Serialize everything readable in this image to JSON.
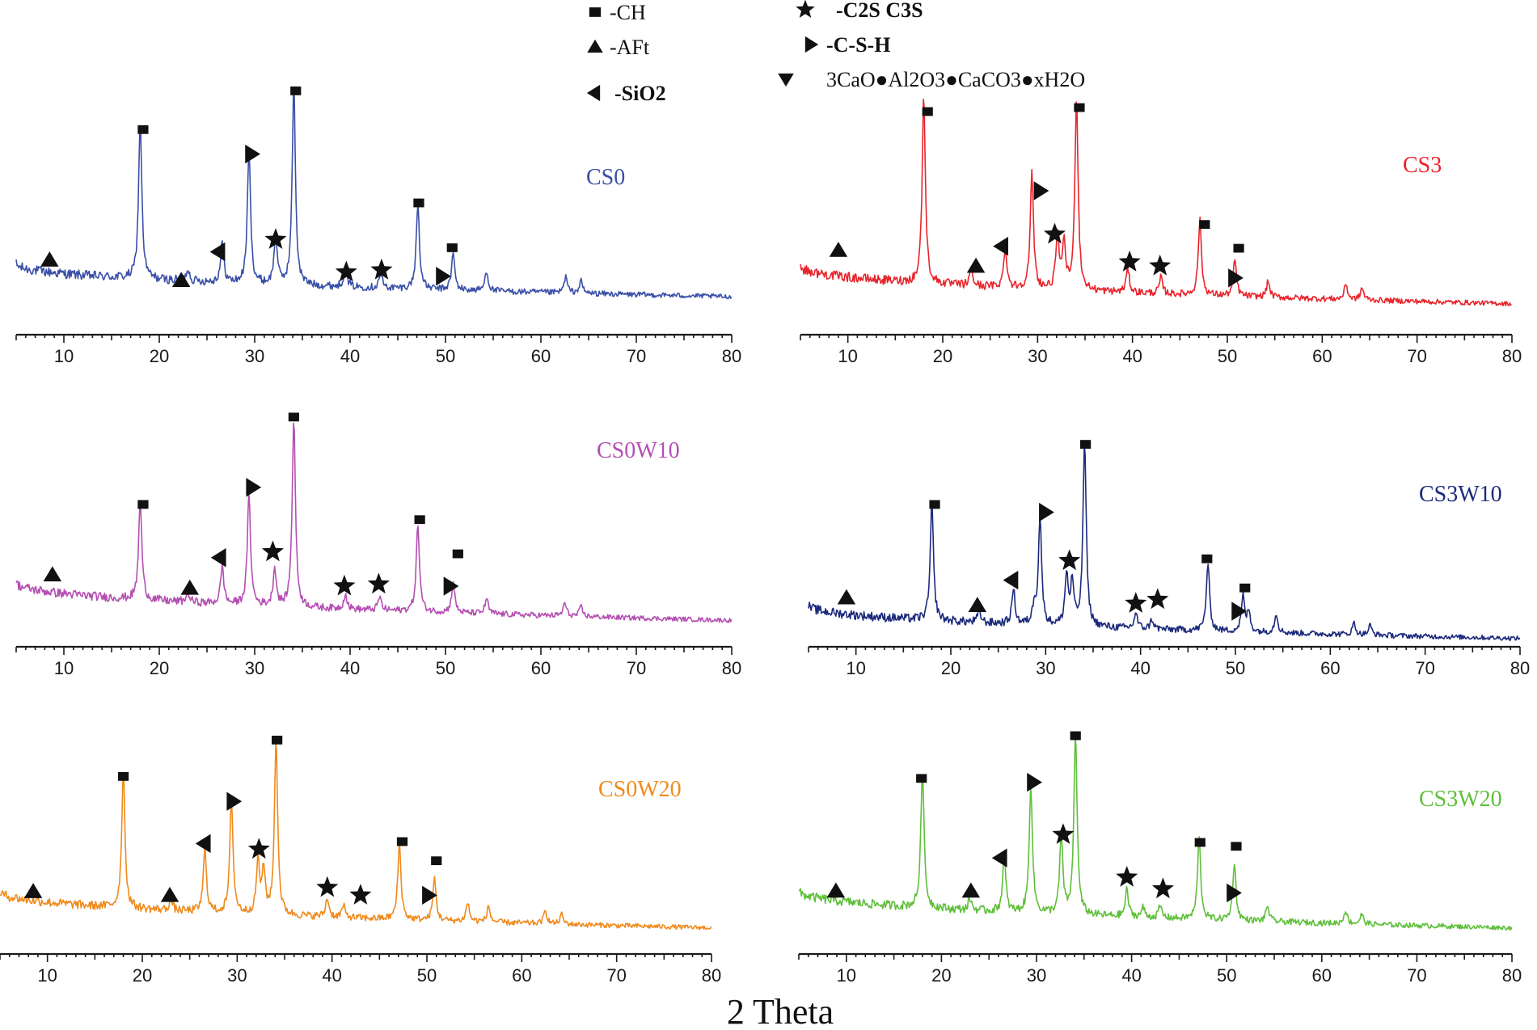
{
  "figure": {
    "x_axis_title": "2 Theta"
  },
  "legend": [
    {
      "symbol": "square",
      "label": "-CH",
      "bold": false
    },
    {
      "symbol": "triangle-up",
      "label": "-AFt",
      "bold": false
    },
    {
      "symbol": "triangle-left",
      "label": "-SiO2",
      "bold": true
    },
    {
      "symbol": "star",
      "label": "-C2S C3S",
      "bold": true
    },
    {
      "symbol": "triangle-right",
      "label": "-C-S-H",
      "bold": true
    },
    {
      "symbol": "triangle-down",
      "label": "3CaO●Al2O3●CaCO3●xH2O",
      "bold": false
    }
  ],
  "chart_data": [
    {
      "type": "line",
      "name": "CS0",
      "color": "#3a4fa8",
      "xlabel": "2 Theta",
      "xlim": [
        5,
        80
      ],
      "xticks": [
        10,
        20,
        30,
        40,
        50,
        60,
        70,
        80
      ],
      "baseline_start": 0.2,
      "baseline_end": 0.04,
      "peaks": [
        [
          18.0,
          0.78
        ],
        [
          23.0,
          0.06
        ],
        [
          26.6,
          0.2
        ],
        [
          29.4,
          0.65
        ],
        [
          32.2,
          0.24
        ],
        [
          34.1,
          0.98
        ],
        [
          39.5,
          0.1
        ],
        [
          43.2,
          0.07
        ],
        [
          47.1,
          0.42
        ],
        [
          50.8,
          0.18
        ],
        [
          54.3,
          0.1
        ],
        [
          62.6,
          0.08
        ],
        [
          64.2,
          0.06
        ]
      ],
      "annotations": [
        {
          "symbol": "triangle-up",
          "x": 8.5,
          "y": 0.22
        },
        {
          "symbol": "square",
          "x": 18.3,
          "y": 0.86
        },
        {
          "symbol": "triangle-up",
          "x": 22.3,
          "y": 0.12
        },
        {
          "symbol": "triangle-left",
          "x": 26.2,
          "y": 0.26
        },
        {
          "symbol": "triangle-right",
          "x": 29.7,
          "y": 0.74
        },
        {
          "symbol": "star",
          "x": 32.2,
          "y": 0.32
        },
        {
          "symbol": "square",
          "x": 34.3,
          "y": 1.05
        },
        {
          "symbol": "star",
          "x": 39.6,
          "y": 0.16
        },
        {
          "symbol": "star",
          "x": 43.3,
          "y": 0.17
        },
        {
          "symbol": "square",
          "x": 47.2,
          "y": 0.5
        },
        {
          "symbol": "triangle-right",
          "x": 49.7,
          "y": 0.14
        },
        {
          "symbol": "square",
          "x": 50.7,
          "y": 0.28
        }
      ]
    },
    {
      "type": "line",
      "name": "CS3",
      "color": "#e8242c",
      "xlabel": "2 Theta",
      "xlim": [
        5,
        80
      ],
      "xticks": [
        10,
        20,
        30,
        40,
        50,
        60,
        70,
        80
      ],
      "baseline_start": 0.22,
      "baseline_end": 0.03,
      "peaks": [
        [
          18.0,
          0.95
        ],
        [
          23.0,
          0.08
        ],
        [
          26.6,
          0.2
        ],
        [
          29.4,
          0.58
        ],
        [
          32.1,
          0.28
        ],
        [
          32.8,
          0.22
        ],
        [
          34.1,
          0.98
        ],
        [
          39.5,
          0.12
        ],
        [
          43.0,
          0.08
        ],
        [
          47.1,
          0.38
        ],
        [
          50.8,
          0.18
        ],
        [
          54.3,
          0.08
        ],
        [
          62.5,
          0.08
        ],
        [
          64.2,
          0.06
        ]
      ],
      "annotations": [
        {
          "symbol": "triangle-up",
          "x": 9.0,
          "y": 0.3
        },
        {
          "symbol": "square",
          "x": 18.4,
          "y": 1.0
        },
        {
          "symbol": "triangle-up",
          "x": 23.5,
          "y": 0.22
        },
        {
          "symbol": "triangle-left",
          "x": 26.2,
          "y": 0.32
        },
        {
          "symbol": "triangle-right",
          "x": 30.3,
          "y": 0.6
        },
        {
          "symbol": "star",
          "x": 31.8,
          "y": 0.38
        },
        {
          "symbol": "square",
          "x": 34.4,
          "y": 1.02
        },
        {
          "symbol": "star",
          "x": 39.7,
          "y": 0.24
        },
        {
          "symbol": "star",
          "x": 42.9,
          "y": 0.22
        },
        {
          "symbol": "square",
          "x": 47.6,
          "y": 0.43
        },
        {
          "symbol": "triangle-right",
          "x": 50.8,
          "y": 0.16
        },
        {
          "symbol": "square",
          "x": 51.2,
          "y": 0.31
        }
      ]
    },
    {
      "type": "line",
      "name": "CS0W10",
      "color": "#b44fb2",
      "xlabel": "2 Theta",
      "xlim": [
        5,
        80
      ],
      "xticks": [
        10,
        20,
        30,
        40,
        50,
        60,
        70,
        80
      ],
      "baseline_start": 0.22,
      "baseline_end": 0.02,
      "peaks": [
        [
          18.0,
          0.52
        ],
        [
          23.0,
          0.05
        ],
        [
          26.6,
          0.2
        ],
        [
          29.4,
          0.58
        ],
        [
          32.1,
          0.2
        ],
        [
          34.1,
          1.0
        ],
        [
          39.5,
          0.08
        ],
        [
          43.1,
          0.07
        ],
        [
          47.1,
          0.46
        ],
        [
          50.8,
          0.16
        ],
        [
          54.3,
          0.08
        ],
        [
          62.5,
          0.07
        ],
        [
          64.2,
          0.05
        ]
      ],
      "annotations": [
        {
          "symbol": "triangle-up",
          "x": 8.8,
          "y": 0.26
        },
        {
          "symbol": "square",
          "x": 18.3,
          "y": 0.63
        },
        {
          "symbol": "triangle-up",
          "x": 23.2,
          "y": 0.19
        },
        {
          "symbol": "triangle-left",
          "x": 26.3,
          "y": 0.35
        },
        {
          "symbol": "triangle-right",
          "x": 29.8,
          "y": 0.72
        },
        {
          "symbol": "star",
          "x": 31.9,
          "y": 0.38
        },
        {
          "symbol": "square",
          "x": 34.1,
          "y": 1.09
        },
        {
          "symbol": "star",
          "x": 39.4,
          "y": 0.2
        },
        {
          "symbol": "star",
          "x": 43.0,
          "y": 0.21
        },
        {
          "symbol": "square",
          "x": 47.3,
          "y": 0.55
        },
        {
          "symbol": "triangle-right",
          "x": 50.5,
          "y": 0.2
        },
        {
          "symbol": "square",
          "x": 51.3,
          "y": 0.37
        }
      ]
    },
    {
      "type": "line",
      "name": "CS3W10",
      "color": "#1c2a7c",
      "xlabel": "2 Theta",
      "xlim": [
        5,
        80
      ],
      "xticks": [
        10,
        20,
        30,
        40,
        50,
        60,
        70,
        80
      ],
      "baseline_start": 0.18,
      "baseline_end": 0.01,
      "peaks": [
        [
          18.0,
          0.6
        ],
        [
          23.0,
          0.06
        ],
        [
          26.6,
          0.18
        ],
        [
          28.8,
          0.1
        ],
        [
          29.4,
          0.56
        ],
        [
          32.2,
          0.26
        ],
        [
          32.8,
          0.22
        ],
        [
          34.1,
          0.96
        ],
        [
          39.5,
          0.08
        ],
        [
          41.2,
          0.05
        ],
        [
          47.1,
          0.35
        ],
        [
          50.8,
          0.18
        ],
        [
          51.4,
          0.1
        ],
        [
          54.3,
          0.1
        ],
        [
          62.5,
          0.06
        ],
        [
          64.2,
          0.05
        ]
      ],
      "annotations": [
        {
          "symbol": "triangle-up",
          "x": 9.0,
          "y": 0.22
        },
        {
          "symbol": "square",
          "x": 18.3,
          "y": 0.7
        },
        {
          "symbol": "triangle-up",
          "x": 22.8,
          "y": 0.18
        },
        {
          "symbol": "triangle-left",
          "x": 26.4,
          "y": 0.31
        },
        {
          "symbol": "triangle-right",
          "x": 30.0,
          "y": 0.66
        },
        {
          "symbol": "star",
          "x": 32.5,
          "y": 0.41
        },
        {
          "symbol": "square",
          "x": 34.2,
          "y": 1.01
        },
        {
          "symbol": "star",
          "x": 39.5,
          "y": 0.19
        },
        {
          "symbol": "star",
          "x": 41.8,
          "y": 0.21
        },
        {
          "symbol": "square",
          "x": 47.0,
          "y": 0.42
        },
        {
          "symbol": "triangle-right",
          "x": 50.3,
          "y": 0.15
        },
        {
          "symbol": "square",
          "x": 51.0,
          "y": 0.27
        }
      ]
    },
    {
      "type": "line",
      "name": "CS0W20",
      "color": "#f08a1c",
      "xlabel": "2 Theta",
      "xlim": [
        5,
        80
      ],
      "xticks": [
        10,
        20,
        30,
        40,
        50,
        60,
        70,
        80
      ],
      "baseline_start": 0.2,
      "baseline_end": 0.01,
      "peaks": [
        [
          18.0,
          0.73
        ],
        [
          23.0,
          0.06
        ],
        [
          26.6,
          0.33
        ],
        [
          29.4,
          0.6
        ],
        [
          32.2,
          0.28
        ],
        [
          32.8,
          0.22
        ],
        [
          34.1,
          0.92
        ],
        [
          39.5,
          0.1
        ],
        [
          41.2,
          0.06
        ],
        [
          47.1,
          0.4
        ],
        [
          50.8,
          0.22
        ],
        [
          54.3,
          0.1
        ],
        [
          56.5,
          0.08
        ],
        [
          62.5,
          0.07
        ],
        [
          64.2,
          0.05
        ]
      ],
      "annotations": [
        {
          "symbol": "triangle-up",
          "x": 8.5,
          "y": 0.2
        },
        {
          "symbol": "square",
          "x": 18.0,
          "y": 0.8
        },
        {
          "symbol": "triangle-up",
          "x": 22.9,
          "y": 0.18
        },
        {
          "symbol": "triangle-left",
          "x": 26.5,
          "y": 0.45
        },
        {
          "symbol": "triangle-right",
          "x": 29.6,
          "y": 0.67
        },
        {
          "symbol": "star",
          "x": 32.3,
          "y": 0.42
        },
        {
          "symbol": "square",
          "x": 34.2,
          "y": 0.99
        },
        {
          "symbol": "star",
          "x": 39.5,
          "y": 0.22
        },
        {
          "symbol": "star",
          "x": 43.0,
          "y": 0.18
        },
        {
          "symbol": "square",
          "x": 47.4,
          "y": 0.46
        },
        {
          "symbol": "triangle-right",
          "x": 50.2,
          "y": 0.18
        },
        {
          "symbol": "square",
          "x": 51.0,
          "y": 0.36
        }
      ]
    },
    {
      "type": "line",
      "name": "CS3W20",
      "color": "#5fbf3a",
      "xlabel": "2 Theta",
      "xlim": [
        5,
        80
      ],
      "xticks": [
        10,
        20,
        30,
        40,
        50,
        60,
        70,
        80
      ],
      "baseline_start": 0.2,
      "baseline_end": 0.01,
      "peaks": [
        [
          18.0,
          0.72
        ],
        [
          23.0,
          0.06
        ],
        [
          26.6,
          0.28
        ],
        [
          29.4,
          0.67
        ],
        [
          32.6,
          0.4
        ],
        [
          34.1,
          0.94
        ],
        [
          39.5,
          0.14
        ],
        [
          41.2,
          0.05
        ],
        [
          43.0,
          0.06
        ],
        [
          47.1,
          0.42
        ],
        [
          50.8,
          0.3
        ],
        [
          54.3,
          0.08
        ],
        [
          62.5,
          0.07
        ],
        [
          64.2,
          0.05
        ]
      ],
      "annotations": [
        {
          "symbol": "triangle-up",
          "x": 8.9,
          "y": 0.2
        },
        {
          "symbol": "square",
          "x": 17.9,
          "y": 0.78
        },
        {
          "symbol": "triangle-up",
          "x": 23.1,
          "y": 0.2
        },
        {
          "symbol": "triangle-left",
          "x": 26.2,
          "y": 0.37
        },
        {
          "symbol": "triangle-right",
          "x": 29.7,
          "y": 0.76
        },
        {
          "symbol": "star",
          "x": 32.8,
          "y": 0.49
        },
        {
          "symbol": "square",
          "x": 34.1,
          "y": 1.0
        },
        {
          "symbol": "star",
          "x": 39.5,
          "y": 0.27
        },
        {
          "symbol": "star",
          "x": 43.3,
          "y": 0.21
        },
        {
          "symbol": "square",
          "x": 47.2,
          "y": 0.45
        },
        {
          "symbol": "triangle-right",
          "x": 50.7,
          "y": 0.19
        },
        {
          "symbol": "square",
          "x": 51.0,
          "y": 0.43
        }
      ]
    }
  ]
}
